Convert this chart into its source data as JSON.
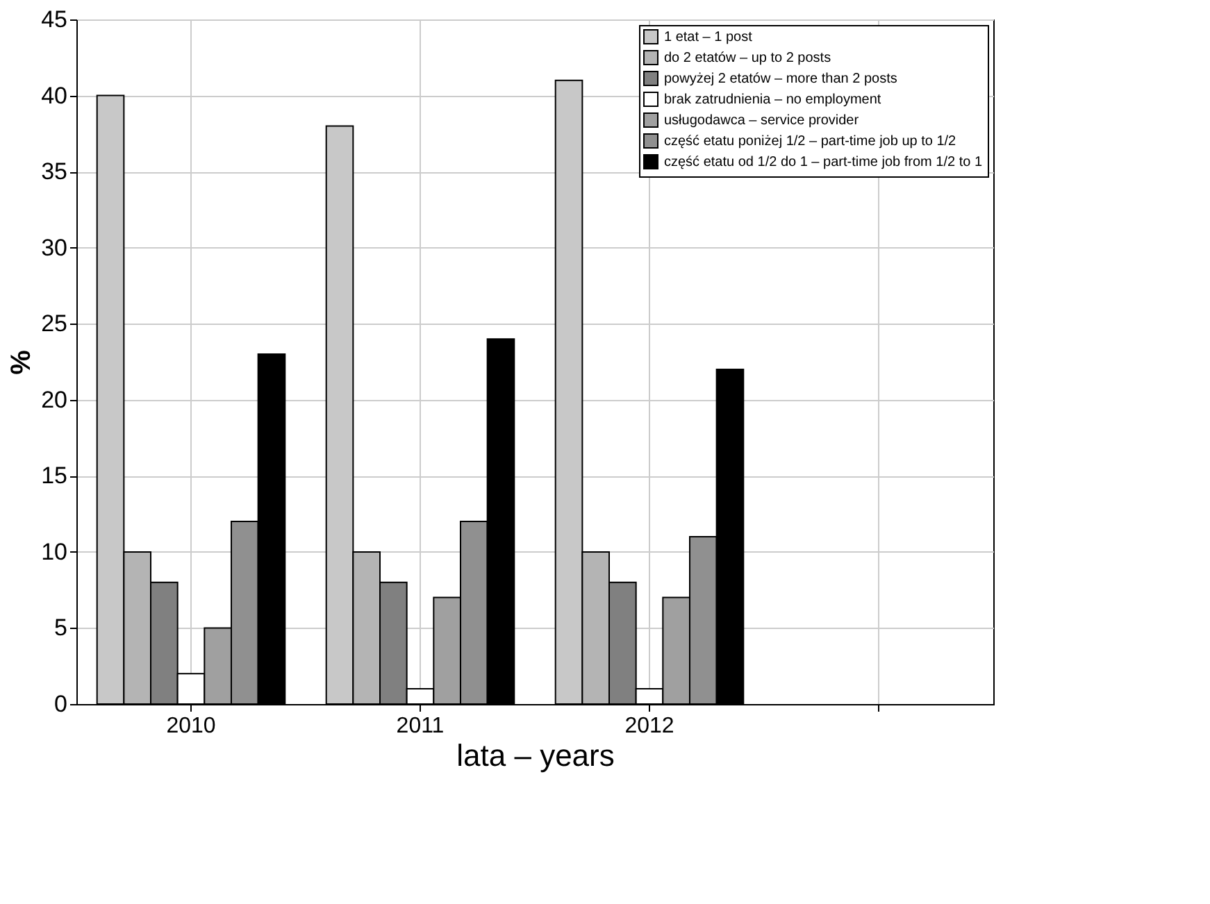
{
  "chart_data": {
    "type": "bar",
    "xlabel": "lata – years",
    "ylabel": "%",
    "categories": [
      "2010",
      "2011",
      "2012",
      null
    ],
    "series": [
      {
        "name": "1 etat – 1 post",
        "color": "#c8c8c8",
        "values": [
          40,
          38,
          41,
          null
        ]
      },
      {
        "name": "do 2 etatów – up to 2 posts",
        "color": "#b4b4b4",
        "values": [
          10,
          10,
          10,
          null
        ]
      },
      {
        "name": "powyżej 2 etatów – more than 2 posts",
        "color": "#808080",
        "values": [
          8,
          8,
          8,
          null
        ]
      },
      {
        "name": "brak zatrudnienia – no employment",
        "color": "#ffffff",
        "values": [
          2,
          1,
          1,
          null
        ]
      },
      {
        "name": "usługodawca – service provider",
        "color": "#a0a0a0",
        "values": [
          5,
          7,
          7,
          null
        ]
      },
      {
        "name": "część etatu poniżej 1/2 – part-time job up to 1/2",
        "color": "#909090",
        "values": [
          12,
          12,
          11,
          null
        ]
      },
      {
        "name": "część etatu od 1/2 do 1 – part-time job from 1/2 to 1",
        "color": "#000000",
        "values": [
          23,
          24,
          22,
          null
        ]
      }
    ],
    "ylim": [
      0,
      45
    ],
    "yticks": [
      0,
      5,
      10,
      15,
      20,
      25,
      30,
      35,
      40,
      45
    ],
    "grid": true,
    "legend": "top right"
  }
}
